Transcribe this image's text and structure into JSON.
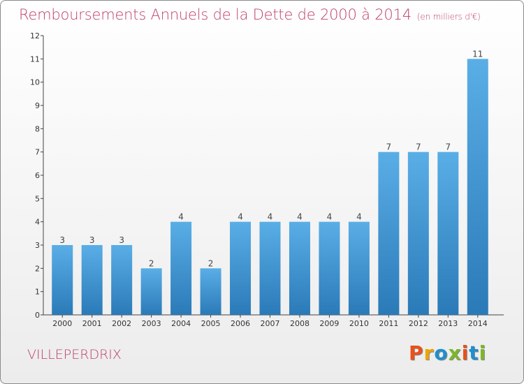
{
  "header": {
    "title": "Remboursements Annuels de la Dette de 2000 à 2014",
    "subtitle": "(en milliers d'€)"
  },
  "footer": {
    "location": "VILLEPERDRIX",
    "logo_text": "Proxiti"
  },
  "colors": {
    "title": "#c0406e",
    "bar_top": "#5aaee6",
    "bar_bottom": "#2a7ab8",
    "logo": [
      "#e8511c",
      "#f0a400",
      "#1f8fcf",
      "#7db62a",
      "#e8511c",
      "#1f8fcf",
      "#7db62a"
    ]
  },
  "chart_data": {
    "type": "bar",
    "title": "Remboursements Annuels de la Dette de 2000 à 2014",
    "subtitle": "(en milliers d'€)",
    "xlabel": "",
    "ylabel": "",
    "categories": [
      "2000",
      "2001",
      "2002",
      "2003",
      "2004",
      "2005",
      "2006",
      "2007",
      "2008",
      "2009",
      "2010",
      "2011",
      "2012",
      "2013",
      "2014"
    ],
    "values": [
      3,
      3,
      3,
      2,
      4,
      2,
      4,
      4,
      4,
      4,
      4,
      7,
      7,
      7,
      11
    ],
    "data_labels": [
      "3",
      "3",
      "3",
      "2",
      "4",
      "2",
      "4",
      "4",
      "4",
      "4",
      "4",
      "7",
      "7",
      "7",
      "11"
    ],
    "ylim": [
      0,
      12
    ],
    "yticks": [
      "0",
      "1",
      "2",
      "3",
      "4",
      "5",
      "6",
      "7",
      "8",
      "9",
      "10",
      "11",
      "12"
    ],
    "grid": false,
    "legend": "none"
  }
}
